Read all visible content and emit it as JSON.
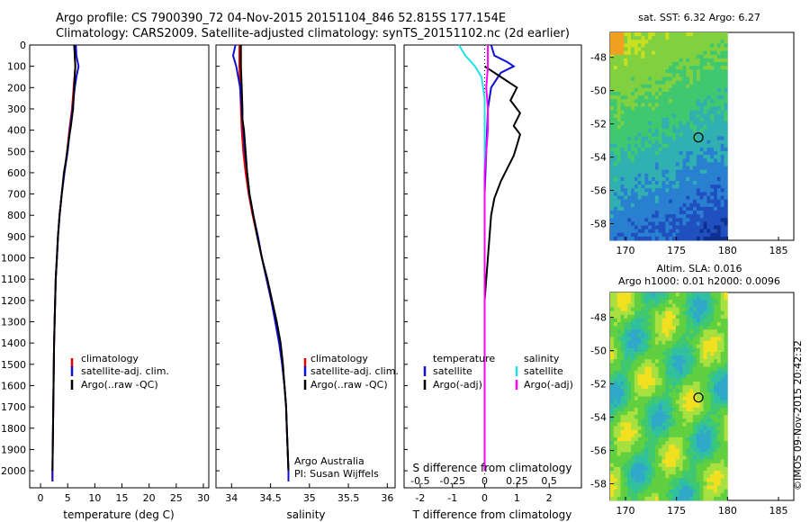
{
  "header": {
    "line1": "Argo profile: CS 7900390_72 04-Nov-2015 20151104_846 52.815S 177.154E",
    "line2": "Climatology: CARS2009. Satellite-adjusted climatology: synTS_20151102.nc (2d earlier)"
  },
  "colors": {
    "climatology": "#e00000",
    "satellite": "#1010d0",
    "argo": "#000000",
    "sat_salinity": "#20e0e8",
    "argo_salinity": "#ff00ff"
  },
  "chart_data": [
    {
      "type": "line",
      "id": "temperature",
      "xlabel": "temperature (deg C)",
      "ylabel": "",
      "xlim": [
        -2,
        31
      ],
      "ylim": [
        2080,
        0
      ],
      "xticks": [
        0,
        5,
        10,
        15,
        20,
        25,
        30
      ],
      "yticks": [
        0,
        100,
        200,
        300,
        400,
        500,
        600,
        700,
        800,
        900,
        1000,
        1100,
        1200,
        1300,
        1400,
        1500,
        1600,
        1700,
        1800,
        1900,
        2000
      ],
      "legend": [
        "climatology",
        "satellite-adj. clim.",
        "Argo(..raw -QC)"
      ],
      "series": [
        {
          "name": "climatology",
          "points": [
            [
              6.3,
              0
            ],
            [
              6.3,
              50
            ],
            [
              6.4,
              100
            ],
            [
              6.1,
              200
            ],
            [
              5.8,
              300
            ],
            [
              5.3,
              400
            ],
            [
              4.9,
              500
            ],
            [
              4.4,
              600
            ],
            [
              3.9,
              700
            ],
            [
              3.5,
              800
            ],
            [
              3.2,
              900
            ],
            [
              3.0,
              1000
            ],
            [
              2.8,
              1100
            ],
            [
              2.7,
              1200
            ],
            [
              2.6,
              1300
            ],
            [
              2.5,
              1400
            ],
            [
              2.45,
              1500
            ],
            [
              2.4,
              1600
            ],
            [
              2.35,
              1700
            ],
            [
              2.3,
              1800
            ],
            [
              2.25,
              1900
            ],
            [
              2.2,
              2000
            ],
            [
              2.2,
              2050
            ]
          ]
        },
        {
          "name": "satellite-adj. clim.",
          "points": [
            [
              6.5,
              0
            ],
            [
              6.6,
              50
            ],
            [
              7.0,
              100
            ],
            [
              6.6,
              150
            ],
            [
              6.3,
              200
            ],
            [
              5.9,
              300
            ],
            [
              5.4,
              400
            ],
            [
              5.0,
              500
            ],
            [
              4.4,
              600
            ],
            [
              3.9,
              700
            ],
            [
              3.5,
              800
            ],
            [
              3.2,
              900
            ],
            [
              3.0,
              1000
            ],
            [
              2.8,
              1100
            ],
            [
              2.7,
              1200
            ],
            [
              2.6,
              1300
            ],
            [
              2.5,
              1400
            ],
            [
              2.45,
              1500
            ],
            [
              2.4,
              1600
            ],
            [
              2.35,
              1700
            ],
            [
              2.3,
              1800
            ],
            [
              2.25,
              1900
            ],
            [
              2.2,
              2000
            ],
            [
              2.2,
              2050
            ]
          ]
        },
        {
          "name": "Argo(..raw -QC)",
          "points": [
            [
              6.2,
              0
            ],
            [
              6.3,
              50
            ],
            [
              6.4,
              100
            ],
            [
              6.2,
              200
            ],
            [
              6.0,
              300
            ],
            [
              5.6,
              380
            ],
            [
              5.3,
              430
            ],
            [
              5.0,
              480
            ],
            [
              4.7,
              540
            ],
            [
              4.3,
              600
            ],
            [
              3.9,
              700
            ],
            [
              3.5,
              800
            ],
            [
              3.2,
              900
            ],
            [
              3.0,
              1000
            ],
            [
              2.8,
              1100
            ],
            [
              2.7,
              1200
            ],
            [
              2.6,
              1300
            ],
            [
              2.5,
              1400
            ],
            [
              2.45,
              1500
            ],
            [
              2.4,
              1600
            ],
            [
              2.35,
              1700
            ],
            [
              2.3,
              1800
            ],
            [
              2.25,
              1900
            ],
            [
              2.2,
              2000
            ]
          ]
        }
      ]
    },
    {
      "type": "line",
      "id": "salinity",
      "xlabel": "salinity",
      "ylabel": "",
      "xlim": [
        33.8,
        36.1
      ],
      "ylim": [
        2080,
        0
      ],
      "xticks": [
        34,
        34.5,
        35,
        35.5,
        36
      ],
      "legend": [
        "climatology",
        "satellite-adj. clim.",
        "Argo(..raw -QC)"
      ],
      "annotation": [
        "Argo Australia",
        "PI: Susan Wijffels"
      ],
      "series": [
        {
          "name": "climatology",
          "points": [
            [
              34.1,
              0
            ],
            [
              34.1,
              100
            ],
            [
              34.11,
              200
            ],
            [
              34.12,
              300
            ],
            [
              34.13,
              400
            ],
            [
              34.15,
              500
            ],
            [
              34.18,
              600
            ],
            [
              34.22,
              700
            ],
            [
              34.27,
              800
            ],
            [
              34.33,
              900
            ],
            [
              34.39,
              1000
            ],
            [
              34.45,
              1100
            ],
            [
              34.51,
              1200
            ],
            [
              34.57,
              1300
            ],
            [
              34.62,
              1400
            ],
            [
              34.65,
              1500
            ],
            [
              34.68,
              1600
            ],
            [
              34.7,
              1700
            ],
            [
              34.71,
              1800
            ],
            [
              34.72,
              1900
            ],
            [
              34.73,
              2000
            ],
            [
              34.73,
              2050
            ]
          ]
        },
        {
          "name": "satellite-adj. clim.",
          "points": [
            [
              34.05,
              0
            ],
            [
              34.02,
              50
            ],
            [
              34.06,
              100
            ],
            [
              34.11,
              200
            ],
            [
              34.13,
              300
            ],
            [
              34.15,
              400
            ],
            [
              34.17,
              500
            ],
            [
              34.2,
              600
            ],
            [
              34.23,
              700
            ],
            [
              34.28,
              800
            ],
            [
              34.34,
              900
            ],
            [
              34.39,
              1000
            ],
            [
              34.45,
              1100
            ],
            [
              34.51,
              1200
            ],
            [
              34.56,
              1300
            ],
            [
              34.61,
              1400
            ],
            [
              34.65,
              1500
            ],
            [
              34.68,
              1600
            ],
            [
              34.7,
              1700
            ],
            [
              34.71,
              1800
            ],
            [
              34.72,
              1900
            ],
            [
              34.73,
              2000
            ],
            [
              34.73,
              2050
            ]
          ]
        },
        {
          "name": "Argo(..raw -QC)",
          "points": [
            [
              34.12,
              0
            ],
            [
              34.12,
              100
            ],
            [
              34.13,
              200
            ],
            [
              34.14,
              300
            ],
            [
              34.14,
              350
            ],
            [
              34.16,
              400
            ],
            [
              34.17,
              450
            ],
            [
              34.18,
              500
            ],
            [
              34.2,
              600
            ],
            [
              34.23,
              700
            ],
            [
              34.28,
              800
            ],
            [
              34.33,
              900
            ],
            [
              34.39,
              1000
            ],
            [
              34.46,
              1100
            ],
            [
              34.52,
              1200
            ],
            [
              34.58,
              1300
            ],
            [
              34.63,
              1400
            ],
            [
              34.66,
              1500
            ],
            [
              34.68,
              1600
            ],
            [
              34.7,
              1700
            ],
            [
              34.71,
              1800
            ],
            [
              34.72,
              1900
            ],
            [
              34.73,
              2000
            ]
          ]
        }
      ]
    },
    {
      "type": "line",
      "id": "difference",
      "xlabel": "T difference from climatology",
      "xlabel2": "S difference from climatology",
      "xlim": [
        -2.5,
        3
      ],
      "ylim": [
        2080,
        0
      ],
      "xticks_T": [
        -2,
        -1,
        0,
        1,
        2
      ],
      "xticks_S_labels": [
        "-0.5",
        "-0.25",
        "0",
        "0.25",
        "0.5"
      ],
      "xticks_S_pos": [
        -2,
        -1,
        0,
        1,
        2
      ],
      "legend_left_title": "temperature",
      "legend_right_title": "salinity",
      "legend_left": [
        "satellite",
        "Argo(-adj)"
      ],
      "legend_right": [
        "satellite",
        "Argo(-adj)"
      ],
      "series": [
        {
          "name": "T satellite",
          "points": [
            [
              0.2,
              0
            ],
            [
              0.3,
              50
            ],
            [
              0.7,
              80
            ],
            [
              0.9,
              100
            ],
            [
              0.5,
              130
            ],
            [
              0.2,
              200
            ],
            [
              0.1,
              300
            ],
            [
              0.05,
              500
            ],
            [
              0,
              700
            ],
            [
              0,
              1000
            ],
            [
              0,
              1500
            ],
            [
              0,
              2000
            ]
          ]
        },
        {
          "name": "T Argo(-adj)",
          "points": [
            [
              0,
              100
            ],
            [
              0.5,
              150
            ],
            [
              1,
              200
            ],
            [
              0.8,
              260
            ],
            [
              1.1,
              320
            ],
            [
              0.9,
              380
            ],
            [
              1.1,
              420
            ],
            [
              1.0,
              470
            ],
            [
              0.9,
              520
            ],
            [
              0.7,
              580
            ],
            [
              0.5,
              640
            ],
            [
              0.3,
              720
            ],
            [
              0.2,
              800
            ],
            [
              0.15,
              900
            ],
            [
              0.1,
              1000
            ],
            [
              0.05,
              1100
            ],
            [
              0,
              1200
            ],
            [
              0,
              1500
            ],
            [
              0,
              2000
            ]
          ]
        },
        {
          "name": "S satellite",
          "points": [
            [
              -0.8,
              0
            ],
            [
              -0.6,
              50
            ],
            [
              -0.3,
              100
            ],
            [
              -0.1,
              150
            ],
            [
              0,
              250
            ],
            [
              0,
              600
            ],
            [
              0,
              900
            ],
            [
              0,
              1200
            ],
            [
              0,
              1600
            ],
            [
              0,
              2000
            ]
          ]
        },
        {
          "name": "S Argo(-adj)",
          "points": [
            [
              0.1,
              0
            ],
            [
              0.1,
              100
            ],
            [
              0.05,
              200
            ],
            [
              0.1,
              300
            ],
            [
              0.1,
              400
            ],
            [
              0.05,
              500
            ],
            [
              0,
              600
            ],
            [
              0,
              900
            ],
            [
              0,
              1300
            ],
            [
              0,
              2000
            ]
          ]
        }
      ]
    },
    {
      "type": "heatmap",
      "id": "sst-map",
      "title": "sat. SST: 6.32 Argo: 6.27",
      "xticks": [
        170,
        175,
        180,
        185
      ],
      "yticks": [
        -48,
        -50,
        -52,
        -54,
        -56,
        -58
      ],
      "xlim": [
        168.5,
        186.5
      ],
      "ylim": [
        -59,
        -46.5
      ],
      "data_xlim": [
        168.5,
        180
      ],
      "float_position": [
        177.154,
        -52.815
      ]
    },
    {
      "type": "heatmap",
      "id": "sla-map",
      "title_line1": "Altim. SLA: 0.016",
      "title_line2": "Argo h1000: 0.01 h2000: 0.0096",
      "xticks": [
        170,
        175,
        180,
        185
      ],
      "yticks": [
        -48,
        -50,
        -52,
        -54,
        -56,
        -58
      ],
      "xlim": [
        168.5,
        186.5
      ],
      "ylim": [
        -59,
        -46.5
      ],
      "data_xlim": [
        168.5,
        180
      ],
      "float_position": [
        177.154,
        -52.815
      ]
    }
  ],
  "footer": {
    "watermark": "©IMOS 09-Nov-2015 20:42:32"
  }
}
